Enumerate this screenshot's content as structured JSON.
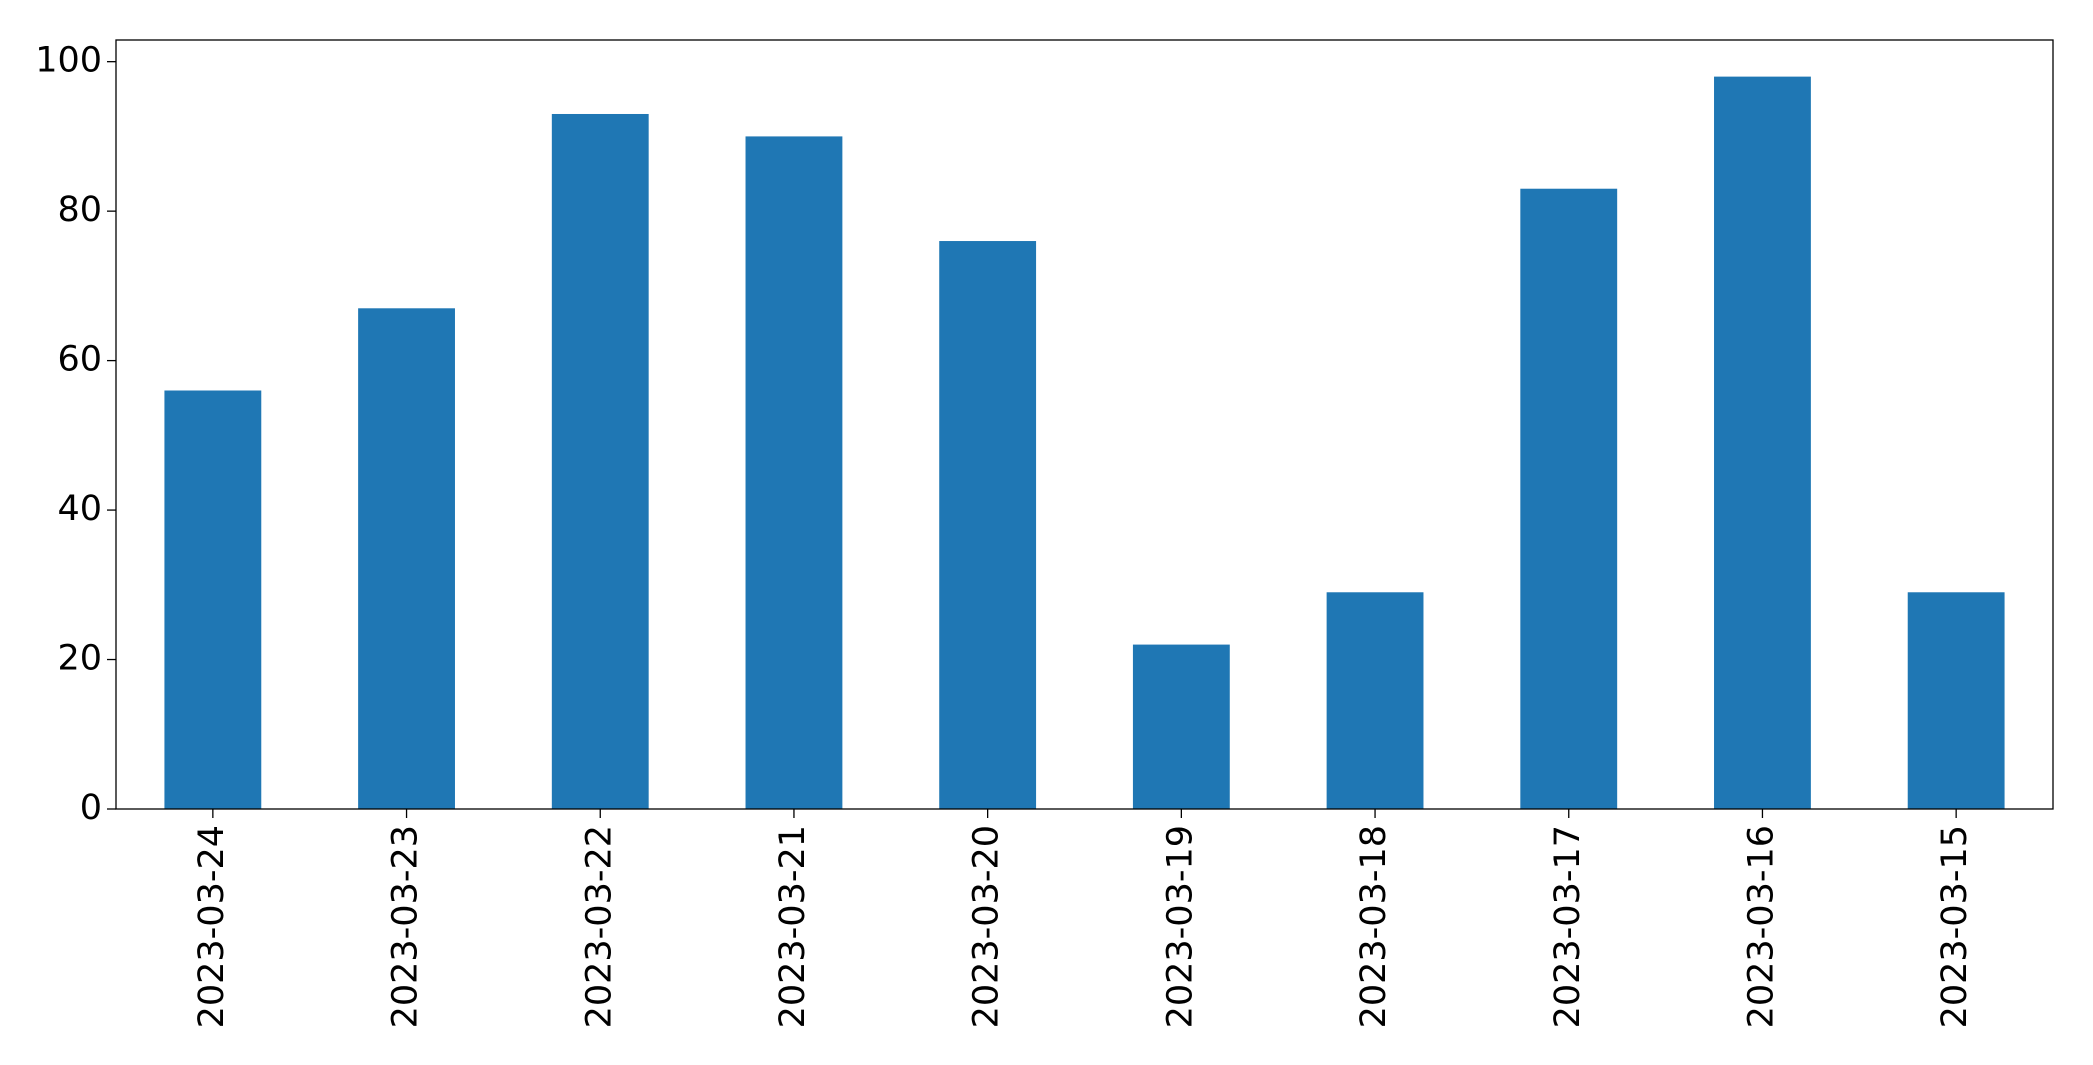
{
  "chart_data": {
    "type": "bar",
    "categories": [
      "2023-03-24",
      "2023-03-23",
      "2023-03-22",
      "2023-03-21",
      "2023-03-20",
      "2023-03-19",
      "2023-03-18",
      "2023-03-17",
      "2023-03-16",
      "2023-03-15"
    ],
    "values": [
      56,
      67,
      93,
      90,
      76,
      22,
      29,
      83,
      98,
      29
    ],
    "color": "#1f77b4",
    "ylim": [
      0,
      102.9
    ],
    "yticks": [
      0,
      20,
      40,
      60,
      80,
      100
    ],
    "grid": false
  }
}
